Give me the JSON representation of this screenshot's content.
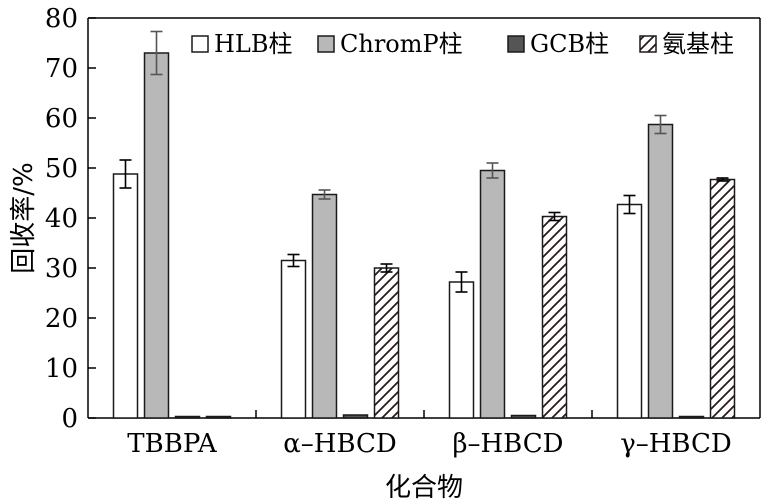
{
  "chart_data": {
    "type": "bar",
    "title": "",
    "xlabel": "化合物",
    "ylabel": "回收率/%",
    "ylim": [
      0,
      80
    ],
    "yticks": [
      0,
      10,
      20,
      30,
      40,
      50,
      60,
      70,
      80
    ],
    "categories": [
      "TBBPA",
      "α–HBCD",
      "β–HBCD",
      "γ–HBCD"
    ],
    "legend_position": "top-right",
    "grid": false,
    "series": [
      {
        "name": "HLB柱",
        "fill": "#ffffff",
        "pattern": "none",
        "values": [
          48.8,
          31.5,
          27.2,
          42.7
        ],
        "errors": [
          2.8,
          1.2,
          2.0,
          1.8
        ]
      },
      {
        "name": "ChromP柱",
        "fill": "#b8b8b8",
        "pattern": "none",
        "values": [
          73.0,
          44.7,
          49.5,
          58.7
        ],
        "errors": [
          4.3,
          0.9,
          1.5,
          1.8
        ]
      },
      {
        "name": "GCB柱",
        "fill": "#555555",
        "pattern": "none",
        "values": [
          0.2,
          0.6,
          0.5,
          0.3
        ],
        "errors": [
          0,
          0,
          0,
          0
        ]
      },
      {
        "name": "氨基柱",
        "fill": "#ffffff",
        "pattern": "hatch",
        "values": [
          0.2,
          30.0,
          40.3,
          47.7
        ],
        "errors": [
          0,
          0.8,
          0.8,
          0.3
        ]
      }
    ]
  }
}
